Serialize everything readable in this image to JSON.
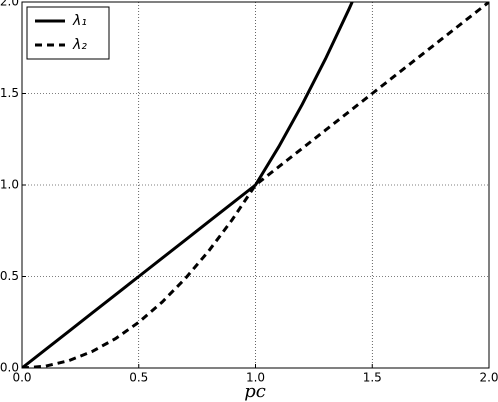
{
  "chart_data": {
    "type": "line",
    "xlabel": "pc",
    "x": [
      0,
      0.1,
      0.2,
      0.3,
      0.4,
      0.5,
      0.6,
      0.7,
      0.8,
      0.9,
      1.0,
      1.1,
      1.2,
      1.3,
      1.4,
      1.414,
      1.5,
      1.6,
      1.7,
      1.8,
      1.9,
      2.0
    ],
    "series": [
      {
        "name": "λ₁",
        "color": "#000000",
        "linestyle": "solid",
        "values": [
          0,
          0.1,
          0.2,
          0.3,
          0.4,
          0.5,
          0.6,
          0.7,
          0.8,
          0.9,
          1.0,
          1.21,
          1.44,
          1.69,
          1.96,
          2.0,
          null,
          null,
          null,
          null,
          null,
          null
        ]
      },
      {
        "name": "λ₂",
        "color": "#000000",
        "linestyle": "dashed",
        "values": [
          0,
          0.01,
          0.04,
          0.09,
          0.16,
          0.25,
          0.36,
          0.49,
          0.64,
          0.81,
          1.0,
          1.1,
          1.2,
          1.3,
          1.4,
          1.414,
          1.5,
          1.6,
          1.7,
          1.8,
          1.9,
          2.0
        ]
      }
    ],
    "xlim": [
      0,
      2
    ],
    "ylim": [
      0,
      2
    ],
    "xticks": [
      {
        "value": 0,
        "label": "0.0"
      },
      {
        "value": 0.5,
        "label": "0.5"
      },
      {
        "value": 1,
        "label": "1.0"
      },
      {
        "value": 1.5,
        "label": "1.5"
      },
      {
        "value": 2,
        "label": "2.0"
      }
    ],
    "yticks": [
      {
        "value": 0,
        "label": "0.0"
      },
      {
        "value": 0.5,
        "label": "0.5"
      },
      {
        "value": 1,
        "label": "1.0"
      },
      {
        "value": 1.5,
        "label": "1.5"
      },
      {
        "value": 2,
        "label": "2.0"
      }
    ],
    "grid": true,
    "legend": "upper-left"
  }
}
